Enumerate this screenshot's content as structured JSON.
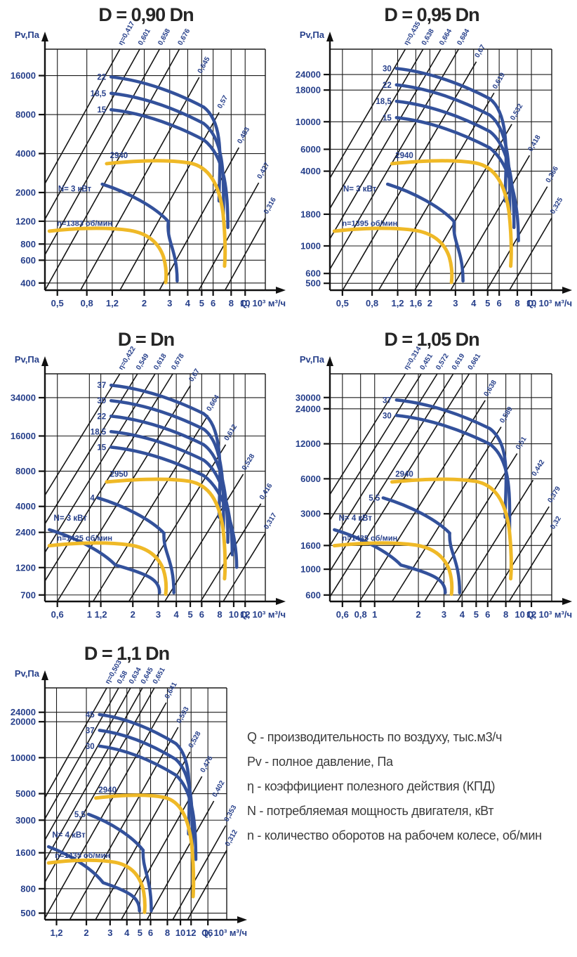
{
  "colors": {
    "curve_blue": "#33519b",
    "curve_yellow": "#efb927",
    "label_navy": "#27408b",
    "grid_black": "#1b1b1b",
    "title_dark": "#262626"
  },
  "legend": {
    "lines": [
      "Q - производительность по воздуху, тыс.м3/ч",
      "Pv - полное давление, Па",
      "η - коэффициент полезного действия (КПД)",
      "N - потребляемая мощность двигателя, кВт",
      "n - количество оборотов на рабочем колесе, об/мин"
    ]
  },
  "chart_data": [
    {
      "type": "line",
      "title": "D = 0,90 Dn",
      "ylabel": "Pv,Па",
      "xlabel": "Q, 10³ м³/ч",
      "y_ticks": [
        "16000",
        "8000",
        "4000",
        "2000",
        "1200",
        "800",
        "600",
        "400"
      ],
      "x_ticks": [
        "0,5",
        "0,8",
        "1,2",
        "2",
        "3",
        "4",
        "5",
        "6",
        "8",
        "10"
      ],
      "efficiency_lines": [
        "η=0,417",
        "0,601",
        "0,658",
        "0,676",
        "0,645",
        "0,57",
        "0,483",
        "0,427",
        "0,316"
      ],
      "power_curves_kw": [
        "22",
        "18,5",
        "15"
      ],
      "small_power_label": null,
      "motor_label": "N= 3 кВт",
      "rpm_top_label": "2940",
      "rpm_bottom_label": "n=1383 об/мин",
      "x_axis_scale": "log",
      "y_axis_scale": "log",
      "grid": true
    },
    {
      "type": "line",
      "title": "D = 0,95 Dn",
      "ylabel": "Pv,Па",
      "xlabel": "Q, 10³ м³/ч",
      "y_ticks": [
        "24000",
        "18000",
        "10000",
        "6000",
        "4000",
        "1800",
        "1000",
        "600",
        "500"
      ],
      "x_ticks": [
        "0,5",
        "0,8",
        "1,2",
        "1,6",
        "2",
        "3",
        "4",
        "5",
        "6",
        "8",
        "10"
      ],
      "efficiency_lines": [
        "η=0,435",
        "0,638",
        "0,664",
        "0,684",
        "0,67",
        "0,619",
        "0,532",
        "0,418",
        "0,366",
        "0,325"
      ],
      "power_curves_kw": [
        "30",
        "22",
        "18,5",
        "15"
      ],
      "small_power_label": null,
      "motor_label": "N= 3 кВт",
      "rpm_top_label": "2940",
      "rpm_bottom_label": "n=1395 об/мин",
      "x_axis_scale": "log",
      "y_axis_scale": "log",
      "grid": true
    },
    {
      "type": "line",
      "title": "D = Dn",
      "ylabel": "Pv,Па",
      "xlabel": "Q, 10³ м³/ч",
      "y_ticks": [
        "34000",
        "16000",
        "8000",
        "4000",
        "2400",
        "1200",
        "700"
      ],
      "x_ticks": [
        "0,6",
        "1",
        "1,2",
        "2",
        "3",
        "4",
        "5",
        "6",
        "8",
        "10",
        "12"
      ],
      "efficiency_lines": [
        "η=0,422",
        "0,549",
        "0,618",
        "0,678",
        "0,67",
        "0,664",
        "0,612",
        "0,528",
        "0,416",
        "0,317"
      ],
      "power_curves_kw": [
        "37",
        "30",
        "22",
        "18,5",
        "15"
      ],
      "small_power_label": "4",
      "motor_label": "N= 3 кВт",
      "rpm_top_label": "2950",
      "rpm_bottom_label": "n=1425 об/мин",
      "x_axis_scale": "log",
      "y_axis_scale": "log",
      "grid": true
    },
    {
      "type": "line",
      "title": "D = 1,05 Dn",
      "ylabel": "Pv,Па",
      "xlabel": "Q, 10³ м³/ч",
      "y_ticks": [
        "30000",
        "24000",
        "12000",
        "6000",
        "3000",
        "1600",
        "1000",
        "600"
      ],
      "x_ticks": [
        "0,6",
        "0,8",
        "1",
        "2",
        "3",
        "4",
        "5",
        "6",
        "8",
        "10",
        "12"
      ],
      "efficiency_lines": [
        "η=0,314",
        "0,451",
        "0,572",
        "0,619",
        "0,661",
        "0,638",
        "0,589",
        "0,51",
        "0,442",
        "0,379",
        "0,32"
      ],
      "power_curves_kw": [
        "37",
        "30"
      ],
      "small_power_label": "5,5",
      "motor_label": "N= 4 кВт",
      "rpm_top_label": "2940",
      "rpm_bottom_label": "n=1435 об/мин",
      "x_axis_scale": "log",
      "y_axis_scale": "log",
      "grid": true
    },
    {
      "type": "line",
      "title": "D = 1,1 Dn",
      "ylabel": "Pv,Па",
      "xlabel": "Q, 10³ м³/ч",
      "y_ticks": [
        "24000",
        "20000",
        "10000",
        "5000",
        "3000",
        "1600",
        "800",
        "500"
      ],
      "x_ticks": [
        "1,2",
        "2",
        "3",
        "4",
        "5",
        "6",
        "8",
        "10",
        "12",
        "16"
      ],
      "efficiency_lines": [
        "η=0,503",
        "0,58",
        "0,634",
        "0,645",
        "0,651",
        "0,641",
        "0,593",
        "0,528",
        "0,476",
        "0,402",
        "0,353",
        "0,312"
      ],
      "power_curves_kw": [
        "45",
        "37",
        "30"
      ],
      "small_power_label": "5,5",
      "motor_label": "N= 4 кВт",
      "rpm_top_label": "2940",
      "rpm_bottom_label": "n=1435 об/мин",
      "x_axis_scale": "log",
      "y_axis_scale": "log",
      "grid": true
    }
  ]
}
